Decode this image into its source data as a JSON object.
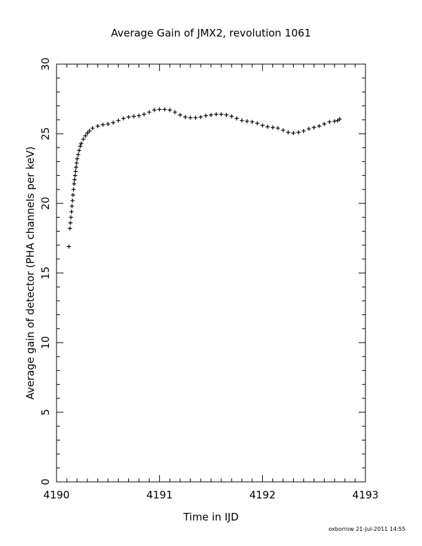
{
  "chart_data": {
    "type": "scatter",
    "title": "Average Gain of JMX2, revolution 1061",
    "xlabel": "Time in IJD",
    "ylabel": "Average gain of detector (PHA channels per keV)",
    "xlim": [
      4190,
      4193
    ],
    "ylim": [
      0,
      30
    ],
    "x_ticks": [
      4190,
      4191,
      4192,
      4193
    ],
    "y_ticks": [
      0,
      5,
      10,
      15,
      20,
      25,
      30
    ],
    "x_minor_step": 0.1,
    "y_minor_step": 1,
    "marker": "plus",
    "grid": false,
    "legend": "none",
    "series": [
      {
        "points": [
          [
            4190.12,
            16.9
          ],
          [
            4190.13,
            18.2
          ],
          [
            4190.135,
            18.6
          ],
          [
            4190.14,
            19.0
          ],
          [
            4190.145,
            19.4
          ],
          [
            4190.15,
            19.8
          ],
          [
            4190.155,
            20.2
          ],
          [
            4190.16,
            20.6
          ],
          [
            4190.165,
            21.0
          ],
          [
            4190.17,
            21.4
          ],
          [
            4190.175,
            21.7
          ],
          [
            4190.18,
            22.0
          ],
          [
            4190.185,
            22.3
          ],
          [
            4190.19,
            22.6
          ],
          [
            4190.195,
            22.9
          ],
          [
            4190.2,
            23.2
          ],
          [
            4190.21,
            23.5
          ],
          [
            4190.22,
            23.8
          ],
          [
            4190.23,
            24.1
          ],
          [
            4190.24,
            24.3
          ],
          [
            4190.26,
            24.6
          ],
          [
            4190.28,
            24.85
          ],
          [
            4190.3,
            25.05
          ],
          [
            4190.32,
            25.2
          ],
          [
            4190.35,
            25.4
          ],
          [
            4190.4,
            25.55
          ],
          [
            4190.45,
            25.65
          ],
          [
            4190.5,
            25.7
          ],
          [
            4190.55,
            25.8
          ],
          [
            4190.6,
            25.95
          ],
          [
            4190.65,
            26.1
          ],
          [
            4190.7,
            26.2
          ],
          [
            4190.75,
            26.25
          ],
          [
            4190.8,
            26.3
          ],
          [
            4190.85,
            26.4
          ],
          [
            4190.9,
            26.55
          ],
          [
            4190.95,
            26.7
          ],
          [
            4191.0,
            26.75
          ],
          [
            4191.05,
            26.75
          ],
          [
            4191.1,
            26.7
          ],
          [
            4191.15,
            26.55
          ],
          [
            4191.2,
            26.35
          ],
          [
            4191.25,
            26.2
          ],
          [
            4191.3,
            26.15
          ],
          [
            4191.35,
            26.15
          ],
          [
            4191.4,
            26.2
          ],
          [
            4191.45,
            26.3
          ],
          [
            4191.5,
            26.35
          ],
          [
            4191.55,
            26.4
          ],
          [
            4191.6,
            26.4
          ],
          [
            4191.65,
            26.35
          ],
          [
            4191.7,
            26.25
          ],
          [
            4191.75,
            26.1
          ],
          [
            4191.8,
            25.95
          ],
          [
            4191.85,
            25.9
          ],
          [
            4191.9,
            25.85
          ],
          [
            4191.95,
            25.75
          ],
          [
            4192.0,
            25.6
          ],
          [
            4192.05,
            25.5
          ],
          [
            4192.1,
            25.45
          ],
          [
            4192.15,
            25.4
          ],
          [
            4192.2,
            25.25
          ],
          [
            4192.25,
            25.1
          ],
          [
            4192.3,
            25.05
          ],
          [
            4192.35,
            25.1
          ],
          [
            4192.4,
            25.2
          ],
          [
            4192.45,
            25.35
          ],
          [
            4192.5,
            25.45
          ],
          [
            4192.55,
            25.55
          ],
          [
            4192.6,
            25.7
          ],
          [
            4192.65,
            25.85
          ],
          [
            4192.7,
            25.9
          ],
          [
            4192.73,
            25.95
          ],
          [
            4192.75,
            26.05
          ]
        ]
      }
    ]
  },
  "footer": {
    "stamp": "oxborrow  21-Jul-2011  14:55"
  }
}
